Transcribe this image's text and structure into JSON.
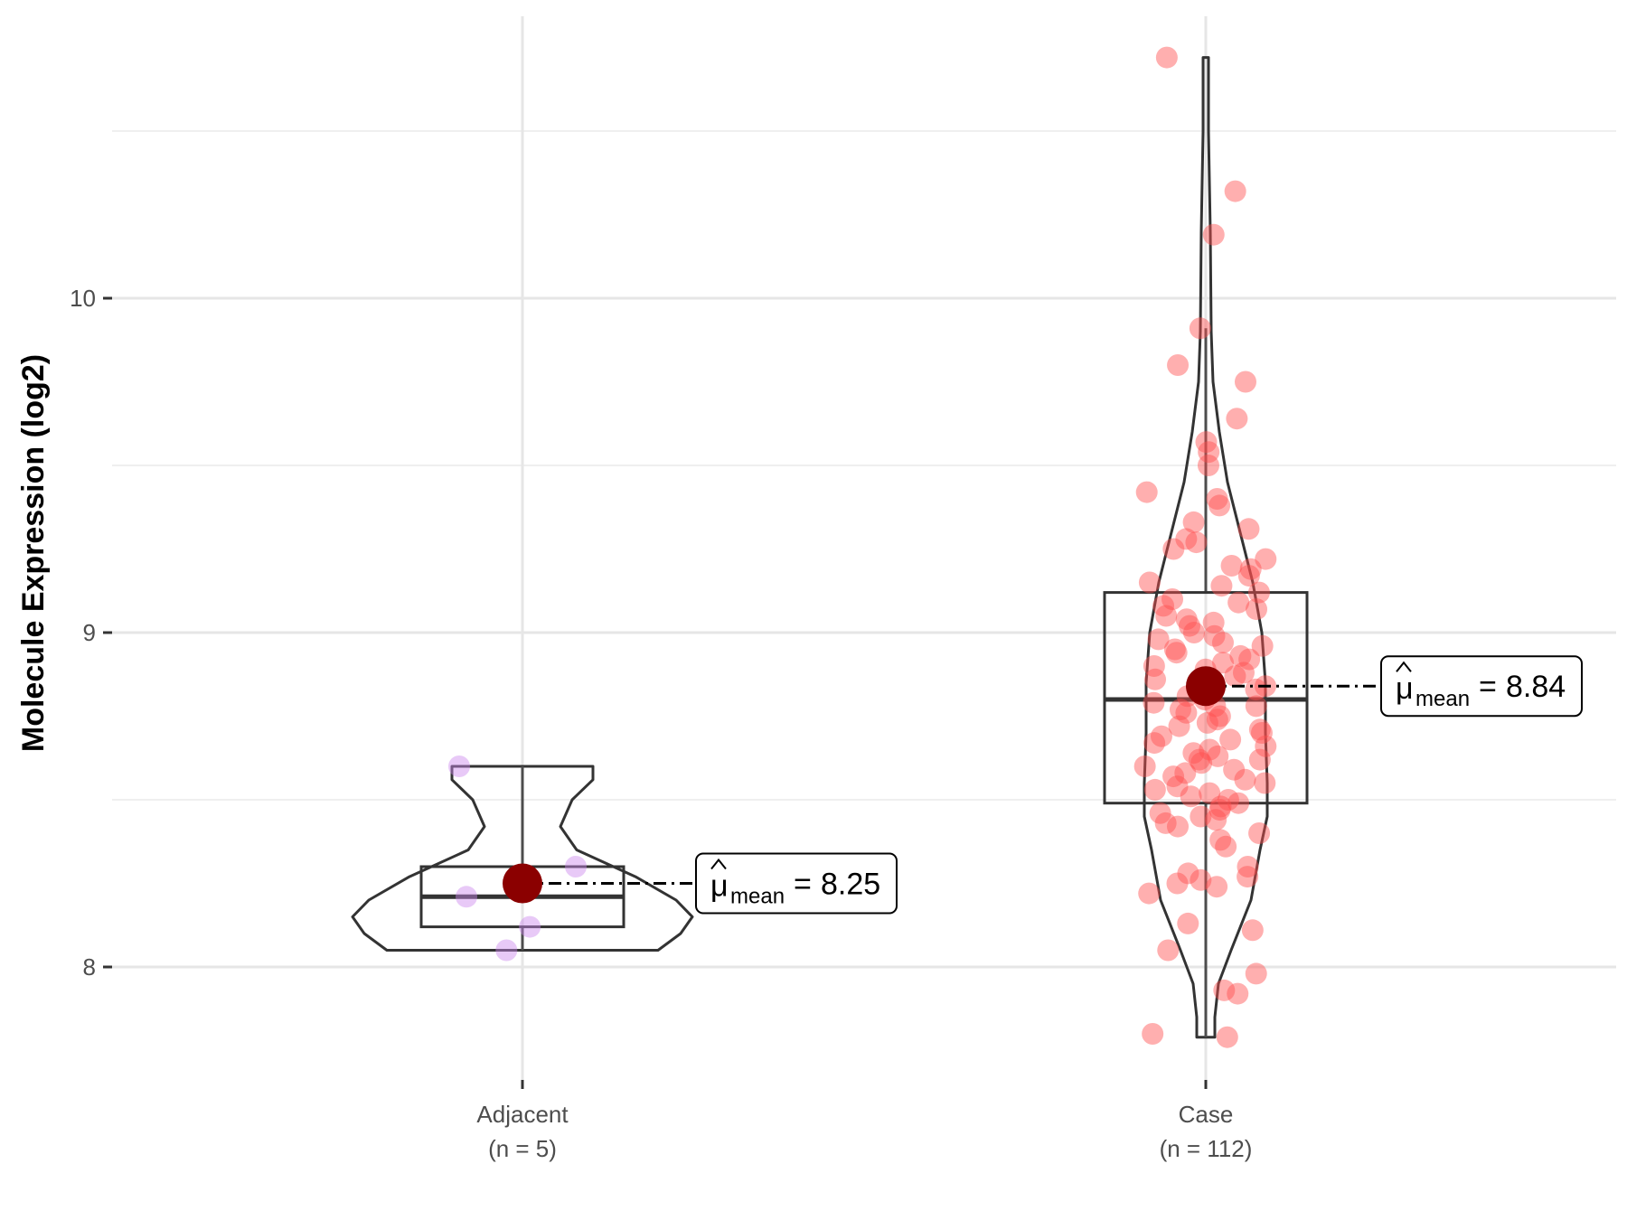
{
  "chart_data": {
    "type": "violin",
    "title": "",
    "xlabel": "",
    "ylabel": "Molecule Expression (log2)",
    "ylim": [
      7.6,
      10.85
    ],
    "yticks": [
      8,
      9,
      10
    ],
    "grid": true,
    "legend": "none",
    "categories": [
      "Adjacent",
      "Case"
    ],
    "category_labels": [
      {
        "name": "Adjacent",
        "n": "(n = 5)"
      },
      {
        "name": "Case",
        "n": "(n = 112)"
      }
    ],
    "groups": [
      {
        "name": "Adjacent",
        "color": "#cc88ee",
        "points": [
          8.6,
          8.3,
          8.21,
          8.12,
          8.05
        ],
        "box": {
          "q1": 8.12,
          "median": 8.21,
          "q3": 8.3,
          "whisker_low": 8.05,
          "whisker_high": 8.6
        },
        "mean": 8.25,
        "mean_label": "8.25",
        "violin_range": [
          8.05,
          8.6
        ]
      },
      {
        "name": "Case",
        "color": "#ff4d4d",
        "points": [
          10.72,
          10.32,
          10.19,
          9.91,
          9.8,
          9.75,
          9.64,
          9.57,
          9.54,
          9.5,
          9.42,
          9.4,
          9.38,
          9.33,
          9.31,
          9.28,
          9.27,
          9.25,
          9.22,
          9.2,
          9.19,
          9.17,
          9.15,
          9.14,
          9.12,
          9.1,
          9.09,
          9.08,
          9.07,
          9.05,
          9.04,
          9.03,
          9.02,
          9.0,
          8.99,
          8.98,
          8.97,
          8.96,
          8.95,
          8.94,
          8.93,
          8.92,
          8.91,
          8.9,
          8.89,
          8.88,
          8.87,
          8.86,
          8.85,
          8.84,
          8.83,
          8.82,
          8.81,
          8.8,
          8.79,
          8.78,
          8.77,
          8.76,
          8.75,
          8.74,
          8.73,
          8.72,
          8.71,
          8.7,
          8.69,
          8.68,
          8.67,
          8.66,
          8.65,
          8.64,
          8.63,
          8.62,
          8.61,
          8.6,
          8.59,
          8.58,
          8.57,
          8.56,
          8.55,
          8.54,
          8.53,
          8.52,
          8.51,
          8.5,
          8.49,
          8.48,
          8.47,
          8.46,
          8.45,
          8.44,
          8.43,
          8.42,
          8.4,
          8.38,
          8.36,
          8.3,
          8.28,
          8.27,
          8.26,
          8.25,
          8.24,
          8.22,
          8.13,
          8.11,
          8.05,
          7.98,
          7.93,
          7.92,
          7.8,
          7.79,
          8.62,
          8.78
        ],
        "box": {
          "q1": 8.49,
          "median": 8.8,
          "q3": 9.12,
          "whisker_low": 7.79,
          "whisker_high": 9.91
        },
        "mean": 8.84,
        "mean_label": "8.84",
        "violin_range": [
          7.79,
          10.72
        ]
      }
    ],
    "mean_annotation": {
      "symbol": "μ",
      "subscript": "mean",
      "operator": "="
    }
  }
}
